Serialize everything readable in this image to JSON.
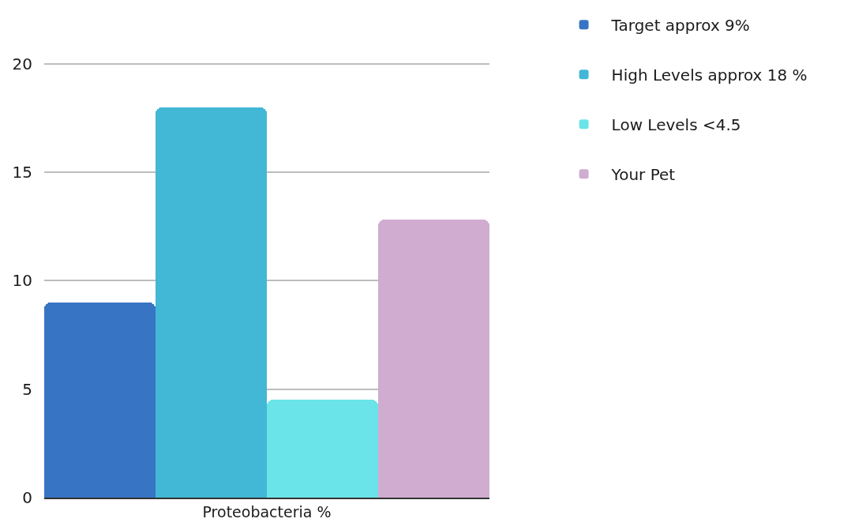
{
  "chart_data": {
    "type": "bar",
    "categories": [
      "Proteobacteria %"
    ],
    "series": [
      {
        "name": "Target approx 9%",
        "color": "#3874c4",
        "values": [
          9
        ]
      },
      {
        "name": "High Levels approx 18 %",
        "color": "#42b7d6",
        "values": [
          18
        ]
      },
      {
        "name": "Low Levels <4.5",
        "color": "#6ae4e8",
        "values": [
          4.5
        ]
      },
      {
        "name": "Your Pet",
        "color": "#d0acd1",
        "values": [
          12.8
        ]
      }
    ],
    "ylim": [
      0,
      20.1
    ],
    "yticks": [
      0,
      5,
      10,
      15,
      20
    ],
    "grid": "y",
    "legend": "top right"
  }
}
